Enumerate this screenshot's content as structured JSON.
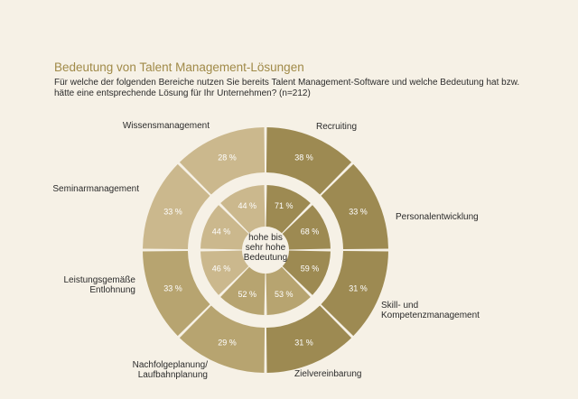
{
  "header": {
    "title": "Bedeutung von Talent Management-Lösungen",
    "subtitle": "Für welche der folgenden Bereiche nutzen Sie bereits Talent Management-Software und welche Bedeutung hat bzw. hätte eine entsprechende Lösung für Ihr Unternehmen? (n=212)"
  },
  "colors": {
    "background": "#f6f1e6",
    "title": "#a08a48",
    "segment_dark": "#9d8a52",
    "segment_mid": "#b7a470",
    "segment_light": "#cbb88d",
    "gap": "#f6f1e6"
  },
  "chart_data": {
    "type": "pie",
    "center_label": [
      "hohe bis",
      "sehr hohe",
      "Bedeutung"
    ],
    "categories": [
      "Recruiting",
      "Personalentwicklung",
      "Skill- und Kompetenzmanagement",
      "Zielvereinbarung",
      "Nachfolgeplanung/ Laufbahnplanung",
      "Leistungsgemäße Entlohnung",
      "Seminarmanagement",
      "Wissensmanagement"
    ],
    "category_label_lines": [
      [
        "Recruiting"
      ],
      [
        "Personalentwicklung"
      ],
      [
        "Skill- und",
        "Kompetenzmanagement"
      ],
      [
        "Zielvereinbarung"
      ],
      [
        "Nachfolgeplanung/",
        "Laufbahnplanung"
      ],
      [
        "Leistungsgemäße",
        "Entlohnung"
      ],
      [
        "Seminarmanagement"
      ],
      [
        "Wissensmanagement"
      ]
    ],
    "series": [
      {
        "ring": "outer",
        "values": [
          38,
          33,
          31,
          31,
          29,
          33,
          33,
          28
        ],
        "labels": [
          "38 %",
          "33 %",
          "31 %",
          "31 %",
          "29 %",
          "33 %",
          "33 %",
          "28 %"
        ]
      },
      {
        "ring": "inner",
        "values": [
          71,
          68,
          59,
          53,
          52,
          46,
          44,
          44
        ],
        "labels": [
          "71 %",
          "68 %",
          "59 %",
          "53 %",
          "52 %",
          "46 %",
          "44 %",
          "44 %"
        ]
      }
    ]
  }
}
